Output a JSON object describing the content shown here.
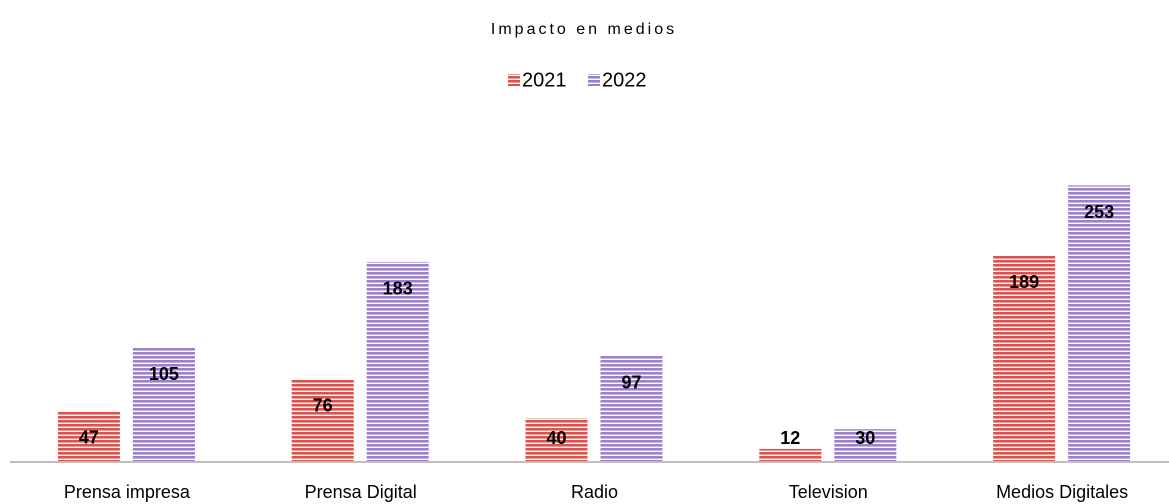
{
  "chart_data": {
    "type": "bar",
    "title": "Impacto en medios",
    "categories": [
      "Prensa impresa",
      "Prensa Digital",
      "Radio",
      "Television",
      "Medios Digitales"
    ],
    "series": [
      {
        "name": "2021",
        "color": "#d9534f",
        "values": [
          47,
          76,
          40,
          12,
          189
        ]
      },
      {
        "name": "2022",
        "color": "#9b80cc",
        "values": [
          105,
          183,
          97,
          30,
          253
        ]
      }
    ],
    "ylim": [
      0,
      300
    ],
    "legend": "top"
  }
}
